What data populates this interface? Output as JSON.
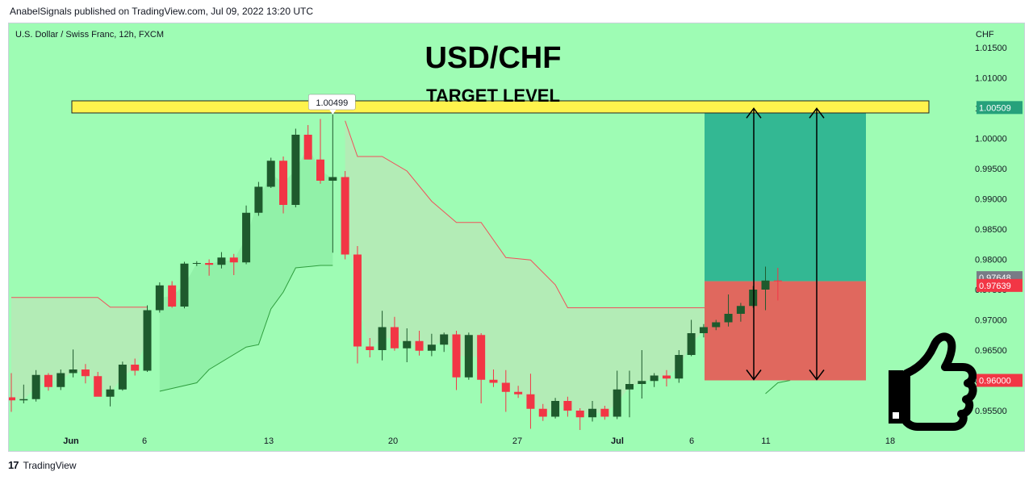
{
  "header": {
    "publisher_line": "AnabelSignals published on TradingView.com, Jul 09, 2022 13:20 UTC"
  },
  "footer": {
    "brand": "TradingView",
    "brand_icon": "tradingview-logo-icon"
  },
  "chart_data": {
    "type": "candlestick",
    "symbol_label": "U.S. Dollar / Swiss Franc, 12h, FXCM",
    "title": "USD/CHF",
    "subtitle": "TARGET LEVEL",
    "currency_label": "CHF",
    "y_ticks": [
      "1.01500",
      "1.01000",
      "1.00500",
      "1.00000",
      "0.99500",
      "0.99000",
      "0.98500",
      "0.98000",
      "0.97500",
      "0.97000",
      "0.96500",
      "0.96000",
      "0.95500"
    ],
    "x_ticks": [
      "Jun",
      "6",
      "13",
      "20",
      "27",
      "Jul",
      "6",
      "11",
      "18"
    ],
    "price_tags": {
      "target": "1.00509",
      "last_a": "0.97648",
      "last_b": "0.97639",
      "stop": "0.96000",
      "high_marker": "1.00499"
    },
    "candles": [
      {
        "o": 0.9572,
        "h": 0.9612,
        "l": 0.9548,
        "c": 0.9567
      },
      {
        "o": 0.9567,
        "h": 0.9593,
        "l": 0.9562,
        "c": 0.9569
      },
      {
        "o": 0.9569,
        "h": 0.9617,
        "l": 0.9565,
        "c": 0.9609
      },
      {
        "o": 0.9609,
        "h": 0.9612,
        "l": 0.9583,
        "c": 0.9589
      },
      {
        "o": 0.9589,
        "h": 0.9618,
        "l": 0.9584,
        "c": 0.9612
      },
      {
        "o": 0.9612,
        "h": 0.9651,
        "l": 0.9605,
        "c": 0.9618
      },
      {
        "o": 0.9618,
        "h": 0.9627,
        "l": 0.9595,
        "c": 0.9607
      },
      {
        "o": 0.9607,
        "h": 0.9614,
        "l": 0.9576,
        "c": 0.9573
      },
      {
        "o": 0.9573,
        "h": 0.9591,
        "l": 0.9557,
        "c": 0.9585
      },
      {
        "o": 0.9585,
        "h": 0.9631,
        "l": 0.9583,
        "c": 0.9626
      },
      {
        "o": 0.9626,
        "h": 0.9636,
        "l": 0.9608,
        "c": 0.9616
      },
      {
        "o": 0.9616,
        "h": 0.9724,
        "l": 0.9614,
        "c": 0.9716
      },
      {
        "o": 0.9716,
        "h": 0.9762,
        "l": 0.9712,
        "c": 0.9757
      },
      {
        "o": 0.9757,
        "h": 0.9764,
        "l": 0.972,
        "c": 0.9722
      },
      {
        "o": 0.9722,
        "h": 0.9796,
        "l": 0.9719,
        "c": 0.9793
      },
      {
        "o": 0.9793,
        "h": 0.9797,
        "l": 0.9789,
        "c": 0.9794
      },
      {
        "o": 0.9794,
        "h": 0.98,
        "l": 0.9773,
        "c": 0.9791
      },
      {
        "o": 0.9791,
        "h": 0.9812,
        "l": 0.9785,
        "c": 0.9803
      },
      {
        "o": 0.9803,
        "h": 0.9809,
        "l": 0.9774,
        "c": 0.9795
      },
      {
        "o": 0.9795,
        "h": 0.9889,
        "l": 0.9792,
        "c": 0.9877
      },
      {
        "o": 0.9877,
        "h": 0.9928,
        "l": 0.9872,
        "c": 0.992
      },
      {
        "o": 0.992,
        "h": 0.9968,
        "l": 0.9918,
        "c": 0.9963
      },
      {
        "o": 0.9963,
        "h": 0.997,
        "l": 0.9876,
        "c": 0.989
      },
      {
        "o": 0.989,
        "h": 1.0016,
        "l": 0.9886,
        "c": 1.0006
      },
      {
        "o": 1.0006,
        "h": 1.0022,
        "l": 0.9967,
        "c": 0.9965
      },
      {
        "o": 0.9965,
        "h": 1.0032,
        "l": 0.9925,
        "c": 0.993
      },
      {
        "o": 0.993,
        "h": 1.005,
        "l": 0.9811,
        "c": 0.9936
      },
      {
        "o": 0.9936,
        "h": 0.9946,
        "l": 0.98,
        "c": 0.9808
      },
      {
        "o": 0.9808,
        "h": 0.9822,
        "l": 0.9628,
        "c": 0.9656
      },
      {
        "o": 0.9656,
        "h": 0.967,
        "l": 0.9638,
        "c": 0.965
      },
      {
        "o": 0.965,
        "h": 0.9715,
        "l": 0.9633,
        "c": 0.9688
      },
      {
        "o": 0.9688,
        "h": 0.9705,
        "l": 0.9649,
        "c": 0.9653
      },
      {
        "o": 0.9653,
        "h": 0.9686,
        "l": 0.963,
        "c": 0.9665
      },
      {
        "o": 0.9665,
        "h": 0.9682,
        "l": 0.9641,
        "c": 0.9649
      },
      {
        "o": 0.9649,
        "h": 0.9677,
        "l": 0.964,
        "c": 0.9659
      },
      {
        "o": 0.9659,
        "h": 0.9679,
        "l": 0.9647,
        "c": 0.9676
      },
      {
        "o": 0.9676,
        "h": 0.9682,
        "l": 0.9584,
        "c": 0.9605
      },
      {
        "o": 0.9605,
        "h": 0.9679,
        "l": 0.9601,
        "c": 0.9675
      },
      {
        "o": 0.9675,
        "h": 0.9678,
        "l": 0.9562,
        "c": 0.9601
      },
      {
        "o": 0.9601,
        "h": 0.9618,
        "l": 0.9589,
        "c": 0.9596
      },
      {
        "o": 0.9596,
        "h": 0.9617,
        "l": 0.9548,
        "c": 0.9581
      },
      {
        "o": 0.9581,
        "h": 0.9591,
        "l": 0.9571,
        "c": 0.9577
      },
      {
        "o": 0.9577,
        "h": 0.9611,
        "l": 0.952,
        "c": 0.9553
      },
      {
        "o": 0.9553,
        "h": 0.9561,
        "l": 0.9533,
        "c": 0.954
      },
      {
        "o": 0.954,
        "h": 0.9571,
        "l": 0.9537,
        "c": 0.9566
      },
      {
        "o": 0.9566,
        "h": 0.9573,
        "l": 0.954,
        "c": 0.955
      },
      {
        "o": 0.955,
        "h": 0.9554,
        "l": 0.9518,
        "c": 0.9539
      },
      {
        "o": 0.9539,
        "h": 0.9566,
        "l": 0.9532,
        "c": 0.9553
      },
      {
        "o": 0.9553,
        "h": 0.9558,
        "l": 0.9535,
        "c": 0.954
      },
      {
        "o": 0.954,
        "h": 0.9616,
        "l": 0.9536,
        "c": 0.9585
      },
      {
        "o": 0.9585,
        "h": 0.9616,
        "l": 0.9539,
        "c": 0.9594
      },
      {
        "o": 0.9594,
        "h": 0.965,
        "l": 0.957,
        "c": 0.9599
      },
      {
        "o": 0.9599,
        "h": 0.9612,
        "l": 0.9589,
        "c": 0.9608
      },
      {
        "o": 0.9608,
        "h": 0.9617,
        "l": 0.959,
        "c": 0.9603
      },
      {
        "o": 0.9603,
        "h": 0.965,
        "l": 0.9596,
        "c": 0.9642
      },
      {
        "o": 0.9642,
        "h": 0.97,
        "l": 0.964,
        "c": 0.9678
      },
      {
        "o": 0.9678,
        "h": 0.9693,
        "l": 0.9671,
        "c": 0.9688
      },
      {
        "o": 0.9688,
        "h": 0.97,
        "l": 0.9683,
        "c": 0.9696
      },
      {
        "o": 0.9696,
        "h": 0.9742,
        "l": 0.9689,
        "c": 0.971
      },
      {
        "o": 0.971,
        "h": 0.9728,
        "l": 0.9697,
        "c": 0.9723
      },
      {
        "o": 0.9723,
        "h": 0.9756,
        "l": 0.972,
        "c": 0.975
      },
      {
        "o": 0.975,
        "h": 0.9788,
        "l": 0.9716,
        "c": 0.9765
      },
      {
        "o": 0.9765,
        "h": 0.9786,
        "l": 0.9732,
        "c": 0.9764
      }
    ],
    "supertrend_upper": [
      [
        0,
        0.9737
      ],
      [
        7,
        0.9737
      ],
      [
        8,
        0.9721
      ],
      [
        11,
        0.9721
      ]
    ],
    "supertrend_lower": [
      [
        12,
        0.9582
      ],
      [
        15,
        0.9596
      ],
      [
        16,
        0.9618
      ],
      [
        19,
        0.9655
      ],
      [
        20,
        0.9659
      ],
      [
        21,
        0.9718
      ],
      [
        22,
        0.9746
      ],
      [
        23,
        0.9786
      ],
      [
        25,
        0.979
      ],
      [
        26,
        0.979
      ]
    ],
    "supertrend_upper_2": [
      [
        27,
        1.0029
      ],
      [
        28,
        0.997
      ],
      [
        30,
        0.997
      ],
      [
        32,
        0.9946
      ],
      [
        34,
        0.9896
      ],
      [
        36,
        0.9861
      ],
      [
        38,
        0.9861
      ],
      [
        40,
        0.9803
      ],
      [
        42,
        0.9799
      ],
      [
        44,
        0.9758
      ],
      [
        45,
        0.972
      ],
      [
        47,
        0.972
      ],
      [
        55,
        0.972
      ],
      [
        60,
        0.972
      ],
      [
        61,
        0.972
      ]
    ],
    "supertrend_lower_2": [
      [
        61,
        0.9578
      ],
      [
        62,
        0.9596
      ],
      [
        63,
        0.96
      ]
    ],
    "target_price": 1.00509,
    "entry_price": 0.97639,
    "stop_price": 0.96,
    "target_band": [
      1.0042,
      1.0062
    ],
    "ylim": [
      0.951,
      1.019
    ]
  }
}
